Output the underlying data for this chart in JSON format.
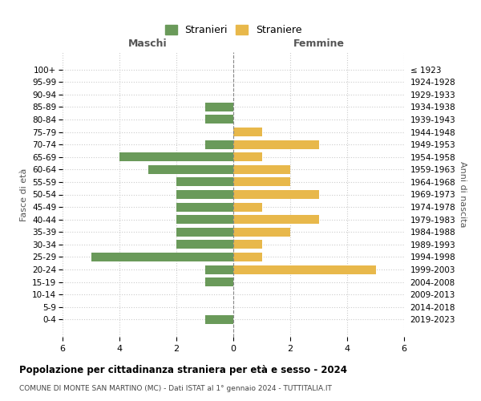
{
  "age_groups": [
    "100+",
    "95-99",
    "90-94",
    "85-89",
    "80-84",
    "75-79",
    "70-74",
    "65-69",
    "60-64",
    "55-59",
    "50-54",
    "45-49",
    "40-44",
    "35-39",
    "30-34",
    "25-29",
    "20-24",
    "15-19",
    "10-14",
    "5-9",
    "0-4"
  ],
  "birth_years": [
    "≤ 1923",
    "1924-1928",
    "1929-1933",
    "1934-1938",
    "1939-1943",
    "1944-1948",
    "1949-1953",
    "1954-1958",
    "1959-1963",
    "1964-1968",
    "1969-1973",
    "1974-1978",
    "1979-1983",
    "1984-1988",
    "1989-1993",
    "1994-1998",
    "1999-2003",
    "2004-2008",
    "2009-2013",
    "2014-2018",
    "2019-2023"
  ],
  "maschi": [
    0,
    0,
    0,
    1,
    1,
    0,
    1,
    4,
    3,
    2,
    2,
    2,
    2,
    2,
    2,
    5,
    1,
    1,
    0,
    0,
    1
  ],
  "femmine": [
    0,
    0,
    0,
    0,
    0,
    1,
    3,
    1,
    2,
    2,
    3,
    1,
    3,
    2,
    1,
    1,
    5,
    0,
    0,
    0,
    0
  ],
  "maschi_color": "#6a9a5a",
  "femmine_color": "#e8b84b",
  "title": "Popolazione per cittadinanza straniera per età e sesso - 2024",
  "subtitle": "COMUNE DI MONTE SAN MARTINO (MC) - Dati ISTAT al 1° gennaio 2024 - TUTTITALIA.IT",
  "ylabel_left": "Fasce di età",
  "ylabel_right": "Anni di nascita",
  "xlabel_left": "Maschi",
  "xlabel_right": "Femmine",
  "legend_maschi": "Stranieri",
  "legend_femmine": "Straniere",
  "xlim": 6,
  "background_color": "#ffffff",
  "grid_color": "#cccccc"
}
